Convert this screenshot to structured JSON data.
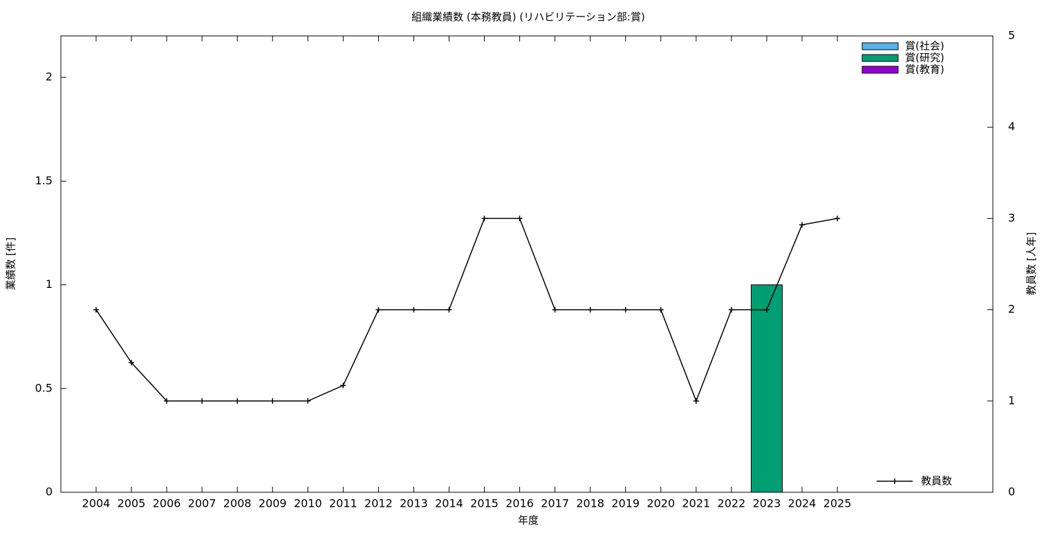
{
  "chart_data": {
    "type": "bar-line",
    "title": "組織業績数 (本務教員) (リハビリテーション部:賞)",
    "xlabel": "年度",
    "ylabel": "業績数 [件]",
    "y2label": "教員数 [人年]",
    "categories": [
      "2004",
      "2005",
      "2006",
      "2007",
      "2008",
      "2009",
      "2010",
      "2011",
      "2012",
      "2013",
      "2014",
      "2015",
      "2016",
      "2017",
      "2018",
      "2019",
      "2020",
      "2021",
      "2022",
      "2023",
      "2024",
      "2025"
    ],
    "series": [
      {
        "name": "賞(社会)",
        "type": "bar",
        "color": "#56b4e9",
        "values": [
          0,
          0,
          0,
          0,
          0,
          0,
          0,
          0,
          0,
          0,
          0,
          0,
          0,
          0,
          0,
          0,
          0,
          0,
          0,
          0,
          0,
          0
        ]
      },
      {
        "name": "賞(研究)",
        "type": "bar",
        "color": "#009e73",
        "values": [
          0,
          0,
          0,
          0,
          0,
          0,
          0,
          0,
          0,
          0,
          0,
          0,
          0,
          0,
          0,
          0,
          0,
          0,
          0,
          1,
          0,
          0
        ]
      },
      {
        "name": "賞(教育)",
        "type": "bar",
        "color": "#9400d3",
        "values": [
          0,
          0,
          0,
          0,
          0,
          0,
          0,
          0,
          0,
          0,
          0,
          0,
          0,
          0,
          0,
          0,
          0,
          0,
          0,
          0,
          0,
          0
        ]
      },
      {
        "name": "教員数",
        "type": "line",
        "axis": "y2",
        "color": "#000000",
        "values": [
          2,
          1.42,
          1,
          1,
          1,
          1,
          1,
          1.17,
          2,
          2,
          2,
          3,
          3,
          2,
          2,
          2,
          2,
          1,
          2,
          2,
          2.93,
          3
        ]
      }
    ],
    "ylim": [
      0,
      2.2
    ],
    "yticks": [
      0,
      0.5,
      1,
      1.5,
      2
    ],
    "y2lim": [
      0,
      5
    ],
    "y2ticks": [
      0,
      1,
      2,
      3,
      4,
      5
    ],
    "legend": "top-right",
    "line_legend": "bottom-right",
    "grid": false
  }
}
